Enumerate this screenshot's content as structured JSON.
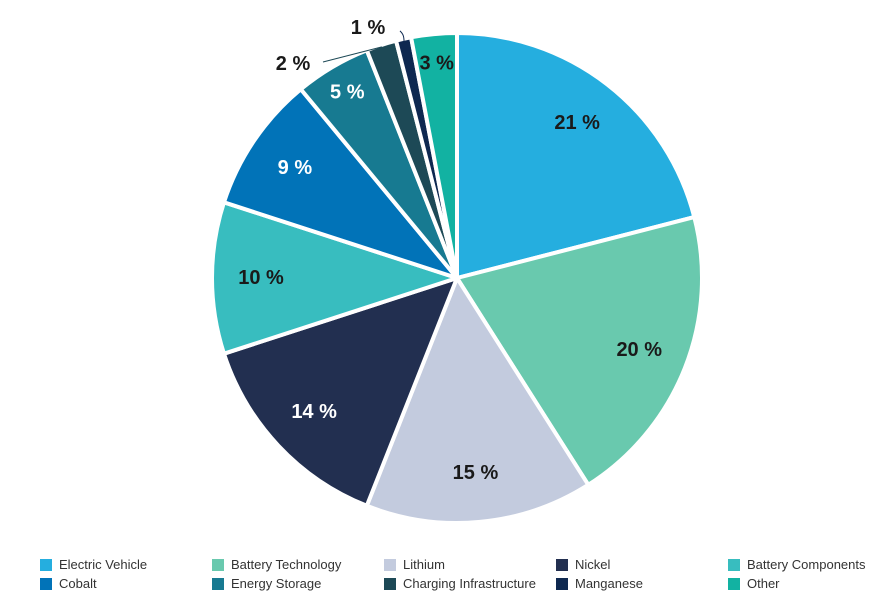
{
  "chart_data": {
    "type": "pie",
    "title": "",
    "legend_position": "bottom",
    "slices": [
      {
        "name": "Electric Vehicle",
        "value": 21,
        "label": "21 %",
        "color": "#25AEDF",
        "label_color": "#1a1a1a"
      },
      {
        "name": "Battery Technology",
        "value": 20,
        "label": "20 %",
        "color": "#69C9AE",
        "label_color": "#1a1a1a"
      },
      {
        "name": "Lithium",
        "value": 15,
        "label": "15 %",
        "color": "#C3CBDE",
        "label_color": "#1a1a1a"
      },
      {
        "name": "Nickel",
        "value": 14,
        "label": "14 %",
        "color": "#222F50",
        "label_color": "#ffffff"
      },
      {
        "name": "Battery Components",
        "value": 10,
        "label": "10 %",
        "color": "#38BDBF",
        "label_color": "#1a1a1a"
      },
      {
        "name": "Cobalt",
        "value": 9,
        "label": "9 %",
        "color": "#0173B8",
        "label_color": "#ffffff"
      },
      {
        "name": "Energy Storage",
        "value": 5,
        "label": "5 %",
        "color": "#177A91",
        "label_color": "#ffffff"
      },
      {
        "name": "Charging Infrastructure",
        "value": 2,
        "label": "2 %",
        "color": "#1D4956",
        "label_color": "#1a1a1a"
      },
      {
        "name": "Manganese",
        "value": 1,
        "label": "1 %",
        "color": "#0E2850",
        "label_color": "#1a1a1a"
      },
      {
        "name": "Other",
        "value": 3,
        "label": "3 %",
        "color": "#12B2A2",
        "label_color": "#1a1a1a"
      }
    ]
  }
}
